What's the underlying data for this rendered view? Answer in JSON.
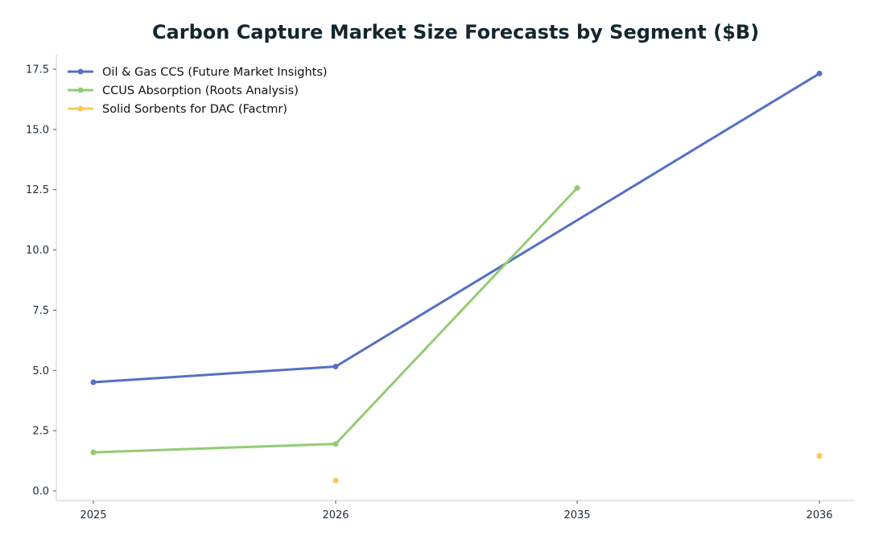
{
  "chart_data": {
    "type": "line",
    "title": "Carbon Capture Market Size Forecasts by Segment ($B)",
    "xlabel": "",
    "ylabel": "",
    "categories": [
      "2025",
      "2026",
      "2035",
      "2036"
    ],
    "ylim": [
      -0.4,
      18.1
    ],
    "yticks": [
      "0.0",
      "2.5",
      "5.0",
      "7.5",
      "10.0",
      "12.5",
      "15.0",
      "17.5"
    ],
    "grid": false,
    "legend_position": "top-left",
    "series": [
      {
        "name": "Oil & Gas CCS (Future Market Insights)",
        "color": "#5470c6",
        "values": [
          4.51,
          5.16,
          null,
          17.32
        ],
        "x": [
          "2025",
          "2026",
          "2035",
          null
        ]
      },
      {
        "name": "CCUS Absorption (Roots Analysis)",
        "color": "#91cc75",
        "values": [
          1.6,
          1.95,
          12.57
        ],
        "x": [
          "2025",
          "2026",
          "2035"
        ]
      },
      {
        "name": "Solid Sorbents for DAC (Factmr)",
        "color": "#fac858",
        "values": [
          0.43,
          1.45
        ],
        "x": [
          "2026",
          "2036"
        ]
      }
    ]
  }
}
